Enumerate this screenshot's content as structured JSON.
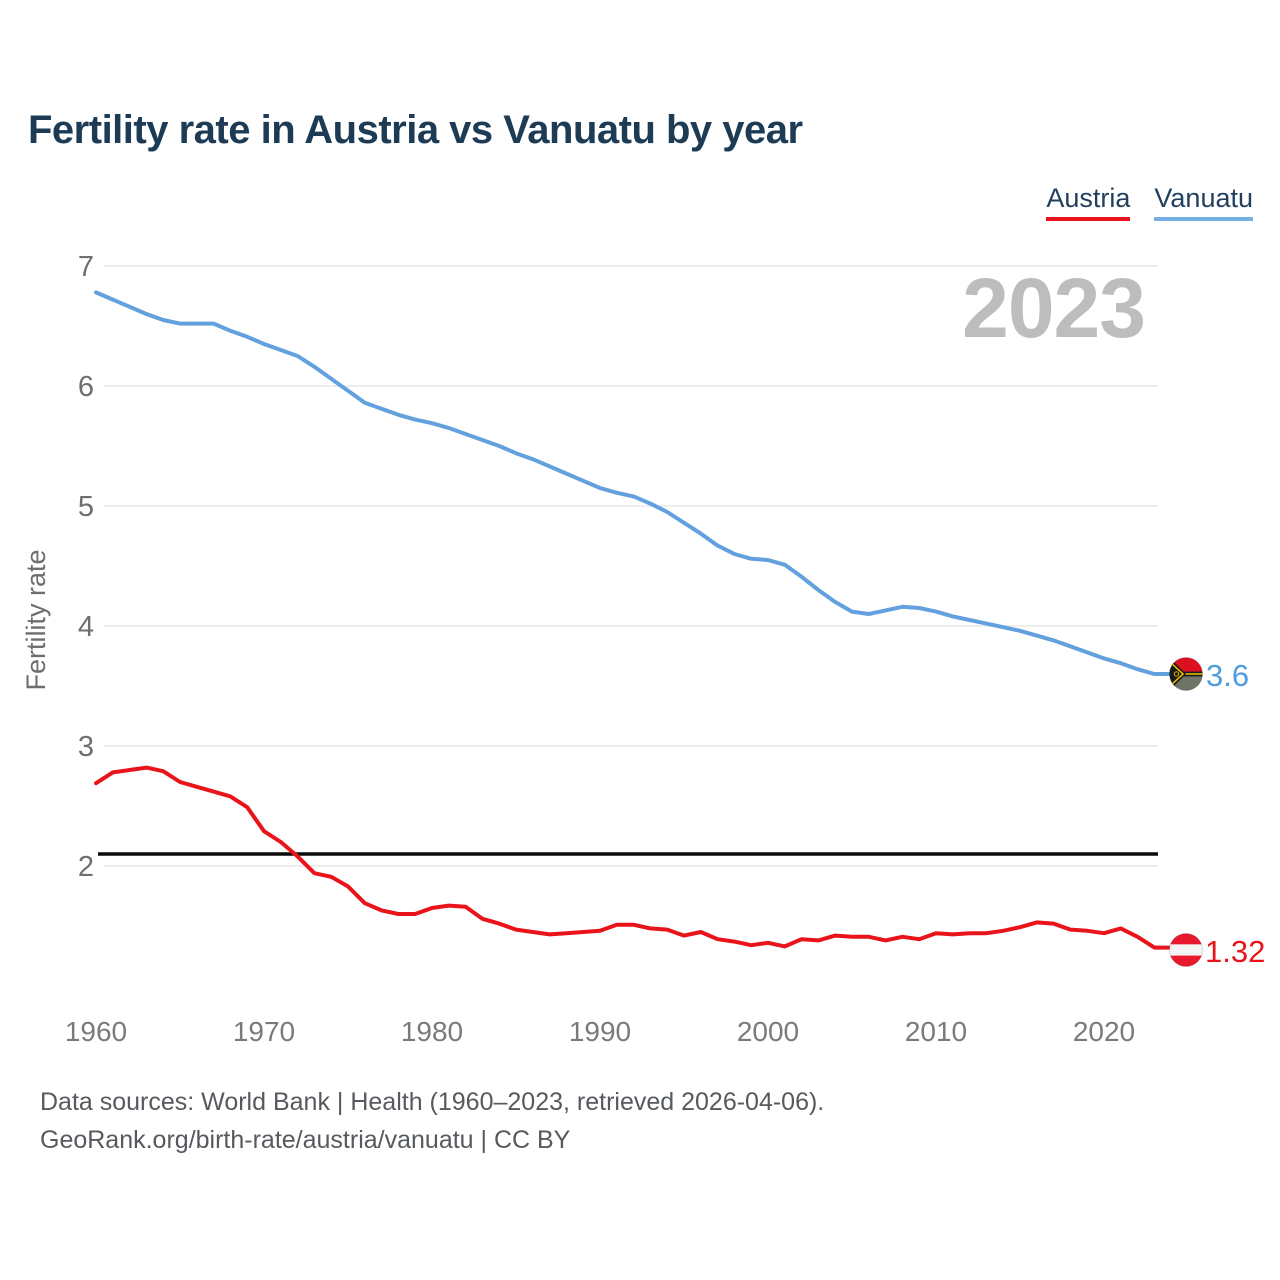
{
  "header": {
    "title": "Fertility rate in Austria vs Vanuatu by year"
  },
  "legend": {
    "items": [
      {
        "label": "Austria",
        "color": "#e9141a"
      },
      {
        "label": "Vanuatu",
        "color": "#74b0e6"
      }
    ]
  },
  "watermark": "2023",
  "footer": {
    "line1": "Data sources: World Bank | Health (1960–2023, retrieved 2026-04-06).",
    "line2": "GeoRank.org/birth-rate/austria/vanuatu | CC BY"
  },
  "chart_data": {
    "type": "line",
    "title": "Fertility rate in Austria vs Vanuatu by year",
    "xlabel": "",
    "ylabel": "Fertility rate",
    "grid": "horizontal",
    "legend_position": "top-right",
    "ylim": [
      1,
      7.1
    ],
    "xlim": [
      1960,
      2023
    ],
    "yticks": [
      2,
      3,
      4,
      5,
      6,
      7
    ],
    "xticks": [
      1960,
      1970,
      1980,
      1990,
      2000,
      2010,
      2020
    ],
    "reference_line": {
      "value": 2.1,
      "color": "#0a0a0a"
    },
    "x": [
      1960,
      1961,
      1962,
      1963,
      1964,
      1965,
      1966,
      1967,
      1968,
      1969,
      1970,
      1971,
      1972,
      1973,
      1974,
      1975,
      1976,
      1977,
      1978,
      1979,
      1980,
      1981,
      1982,
      1983,
      1984,
      1985,
      1986,
      1987,
      1988,
      1989,
      1990,
      1991,
      1992,
      1993,
      1994,
      1995,
      1996,
      1997,
      1998,
      1999,
      2000,
      2001,
      2002,
      2003,
      2004,
      2005,
      2006,
      2007,
      2008,
      2009,
      2010,
      2011,
      2012,
      2013,
      2014,
      2015,
      2016,
      2017,
      2018,
      2019,
      2020,
      2021,
      2022,
      2023
    ],
    "series": [
      {
        "name": "Austria",
        "color": "#e9141a",
        "flag_icon": "austria-flag-icon",
        "end_label": "1.32",
        "values": [
          2.69,
          2.78,
          2.8,
          2.82,
          2.79,
          2.7,
          2.66,
          2.62,
          2.58,
          2.49,
          2.29,
          2.2,
          2.08,
          1.94,
          1.91,
          1.83,
          1.69,
          1.63,
          1.6,
          1.6,
          1.65,
          1.67,
          1.66,
          1.56,
          1.52,
          1.47,
          1.45,
          1.43,
          1.44,
          1.45,
          1.46,
          1.51,
          1.51,
          1.48,
          1.47,
          1.42,
          1.45,
          1.39,
          1.37,
          1.34,
          1.36,
          1.33,
          1.39,
          1.38,
          1.42,
          1.41,
          1.41,
          1.38,
          1.41,
          1.39,
          1.44,
          1.43,
          1.44,
          1.44,
          1.46,
          1.49,
          1.53,
          1.52,
          1.47,
          1.46,
          1.44,
          1.48,
          1.41,
          1.32
        ]
      },
      {
        "name": "Vanuatu",
        "color": "#63a0de",
        "flag_icon": "vanuatu-flag-icon",
        "end_label": "3.6",
        "values": [
          6.78,
          6.72,
          6.66,
          6.6,
          6.55,
          6.52,
          6.52,
          6.52,
          6.46,
          6.41,
          6.35,
          6.3,
          6.25,
          6.16,
          6.06,
          5.96,
          5.86,
          5.81,
          5.76,
          5.72,
          5.69,
          5.65,
          5.6,
          5.55,
          5.5,
          5.44,
          5.39,
          5.33,
          5.27,
          5.21,
          5.15,
          5.11,
          5.08,
          5.02,
          4.95,
          4.86,
          4.77,
          4.67,
          4.6,
          4.56,
          4.55,
          4.51,
          4.41,
          4.3,
          4.2,
          4.12,
          4.1,
          4.13,
          4.16,
          4.15,
          4.12,
          4.08,
          4.05,
          4.02,
          3.99,
          3.96,
          3.92,
          3.88,
          3.83,
          3.78,
          3.73,
          3.69,
          3.64,
          3.6
        ]
      }
    ]
  }
}
